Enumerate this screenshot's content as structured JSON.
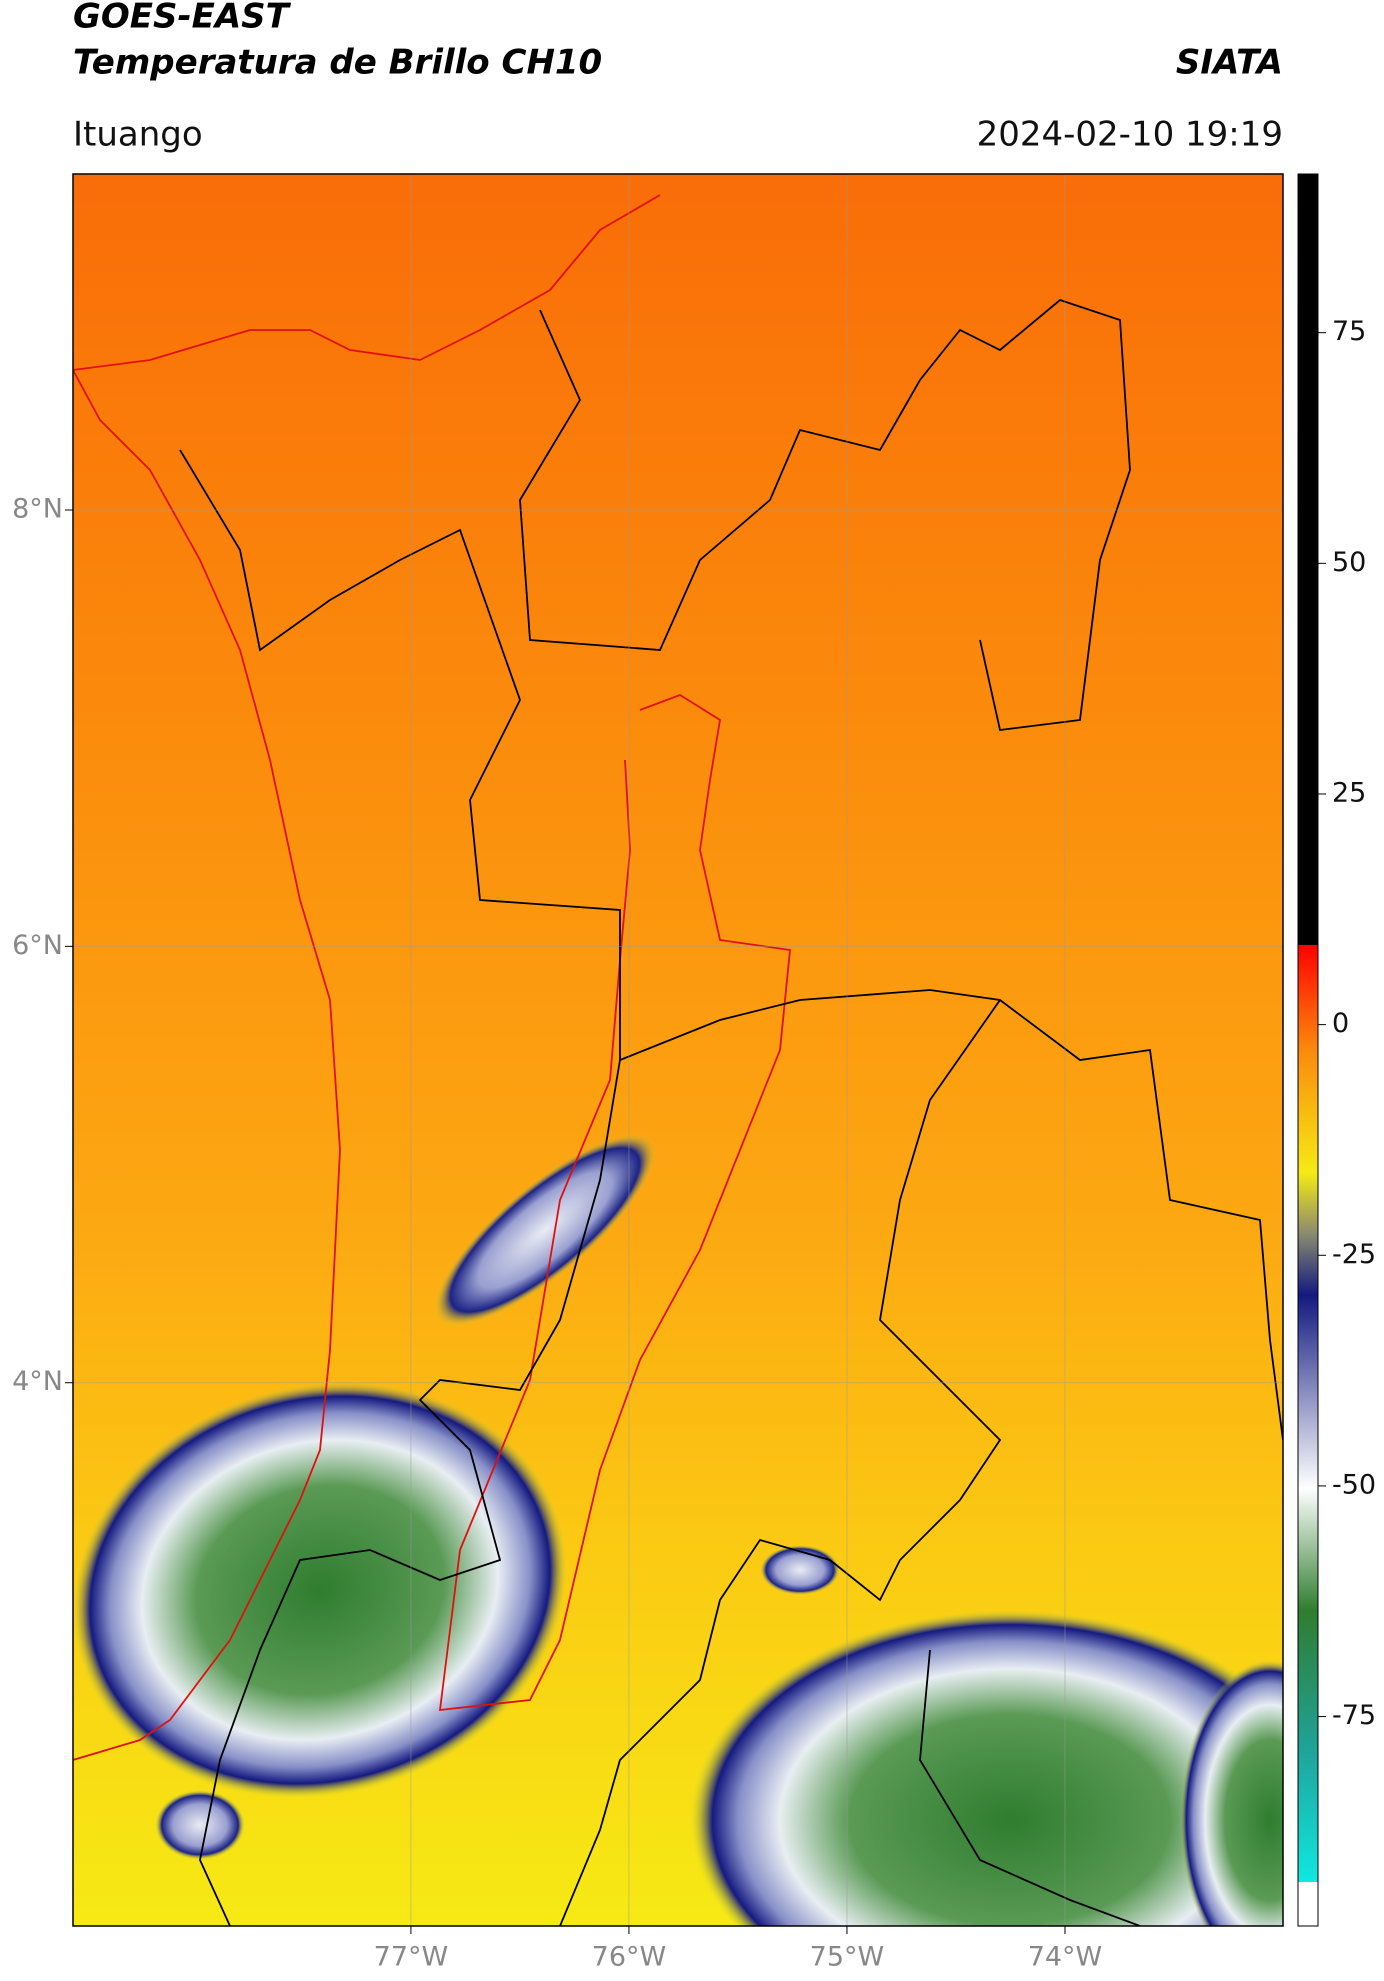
{
  "header": {
    "satellite": "GOES-EAST",
    "product": "Temperatura de Brillo CH10",
    "institution": "SIATA",
    "location": "Ituango",
    "datetime": "2024-02-10 19:19"
  },
  "map": {
    "lat_range": [
      1.51,
      9.54
    ],
    "lon_range": [
      -78.55,
      -73.0
    ],
    "lat_ticks": [
      {
        "value": 8,
        "label": "8°N"
      },
      {
        "value": 6,
        "label": "6°N"
      },
      {
        "value": 4,
        "label": "4°N"
      }
    ],
    "lon_ticks": [
      {
        "value": -77,
        "label": "77°W"
      },
      {
        "value": -76,
        "label": "76°W"
      },
      {
        "value": -75,
        "label": "75°W"
      },
      {
        "value": -74,
        "label": "74°W"
      }
    ]
  },
  "colorbar": {
    "range": [
      -97.7,
      92.2
    ],
    "ticks": [
      75,
      50,
      25,
      0,
      -25,
      -50,
      -75
    ]
  }
}
